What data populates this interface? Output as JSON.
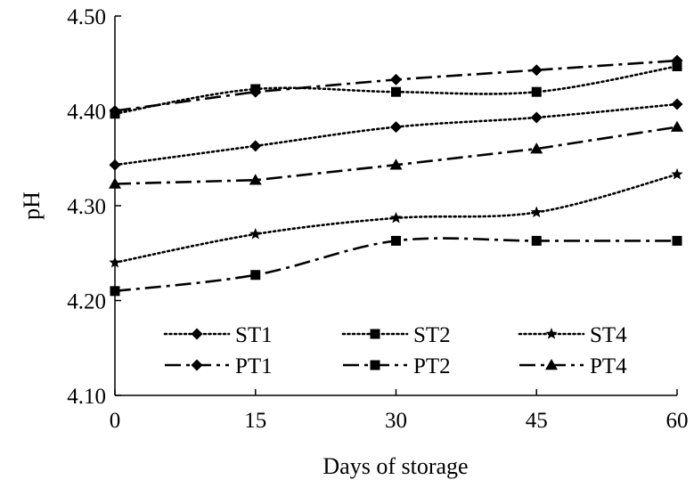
{
  "chart_data": {
    "type": "line",
    "title": "",
    "xlabel": "Days of storage",
    "ylabel": "pH",
    "x": [
      0,
      15,
      30,
      45,
      60
    ],
    "xticks": [
      "0",
      "15",
      "30",
      "45",
      "60"
    ],
    "yticks": [
      "4.10",
      "4.20",
      "4.30",
      "4.40",
      "4.50"
    ],
    "xlim": [
      0,
      60
    ],
    "ylim": [
      4.1,
      4.5
    ],
    "grid": false,
    "legend_position": "bottom-inside",
    "series": [
      {
        "name": "ST1",
        "line_style": "dotted",
        "marker": "diamond",
        "smooth": true,
        "values": [
          4.343,
          4.363,
          4.383,
          4.393,
          4.407
        ]
      },
      {
        "name": "ST2",
        "line_style": "dotted",
        "marker": "square",
        "smooth": true,
        "values": [
          4.397,
          4.423,
          4.42,
          4.42,
          4.447
        ]
      },
      {
        "name": "ST4",
        "line_style": "dotted",
        "marker": "star",
        "smooth": true,
        "values": [
          4.24,
          4.27,
          4.287,
          4.293,
          4.333
        ]
      },
      {
        "name": "PT1",
        "line_style": "dash-dot",
        "marker": "diamond",
        "smooth": false,
        "values": [
          4.4,
          4.42,
          4.433,
          4.443,
          4.453
        ]
      },
      {
        "name": "PT2",
        "line_style": "dash-dot",
        "marker": "square",
        "smooth": true,
        "values": [
          4.21,
          4.227,
          4.263,
          4.263,
          4.263
        ]
      },
      {
        "name": "PT4",
        "line_style": "dash-dot",
        "marker": "triangle",
        "smooth": false,
        "values": [
          4.323,
          4.327,
          4.343,
          4.36,
          4.383
        ]
      }
    ]
  }
}
